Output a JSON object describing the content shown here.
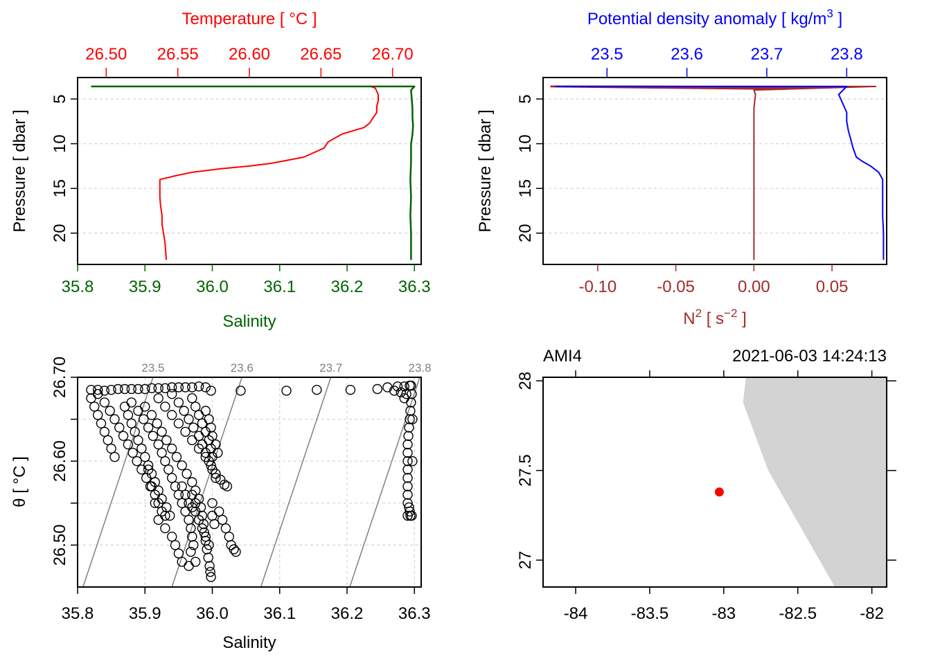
{
  "colors": {
    "temperature": "#ff0000",
    "salinity": "#006400",
    "density": "#0000ff",
    "n2": "#a52a2a",
    "grid": "#d3d3d3",
    "isopycnal": "#808080",
    "land": "#d3d3d3",
    "station": "#ff0000"
  },
  "chart_data": [
    {
      "type": "line",
      "panel": "profile-temperature-salinity",
      "title": "",
      "top_axis": {
        "label": "Temperature [ °C ]",
        "range": [
          26.48,
          26.72
        ],
        "ticks": [
          "26.50",
          "26.55",
          "26.60",
          "26.65",
          "26.70"
        ],
        "tick_values": [
          26.5,
          26.55,
          26.6,
          26.65,
          26.7
        ]
      },
      "bottom_axis": {
        "label": "Salinity",
        "range": [
          35.8,
          36.31
        ],
        "ticks": [
          "35.8",
          "35.9",
          "36.0",
          "36.1",
          "36.2",
          "36.3"
        ],
        "tick_values": [
          35.8,
          35.9,
          36.0,
          36.1,
          36.2,
          36.3
        ]
      },
      "left_axis": {
        "label": "Pressure [ dbar ]",
        "range": [
          2.6,
          23.5
        ],
        "reversed": true,
        "ticks": [
          "5",
          "10",
          "15",
          "20"
        ],
        "tick_values": [
          5,
          10,
          15,
          20
        ]
      },
      "grid": true,
      "series": [
        {
          "name": "Temperature",
          "axis": "top",
          "x": [
            26.68,
            26.685,
            26.688,
            26.69,
            26.69,
            26.689,
            26.689,
            26.686,
            26.684,
            26.68,
            26.665,
            26.655,
            26.652,
            26.645,
            26.638,
            26.625,
            26.615,
            26.6,
            26.58,
            26.56,
            26.548,
            26.5375,
            26.5375,
            26.5375,
            26.538,
            26.539,
            26.539,
            26.54,
            26.541,
            26.542
          ],
          "y": [
            3.6,
            3.6,
            3.8,
            4.5,
            5.2,
            5.8,
            6.5,
            7.2,
            7.7,
            8.2,
            8.9,
            9.8,
            10.5,
            11.0,
            11.5,
            11.9,
            12.2,
            12.5,
            12.8,
            13.2,
            13.6,
            14.0,
            15.0,
            16.0,
            17.0,
            18.0,
            19.0,
            20.0,
            21.0,
            23.0
          ]
        },
        {
          "name": "Salinity",
          "axis": "bottom",
          "x": [
            35.82,
            36.3,
            36.295,
            36.296,
            36.297,
            36.297,
            36.298,
            36.297,
            36.295,
            36.295,
            36.294,
            36.295,
            36.294,
            36.295,
            36.295
          ],
          "y": [
            3.6,
            3.6,
            4.0,
            5.0,
            6.0,
            7.0,
            8.0,
            9.0,
            10.0,
            12.0,
            14.0,
            16.0,
            18.0,
            20.0,
            23.0
          ]
        }
      ]
    },
    {
      "type": "line",
      "panel": "profile-density-n2",
      "title": "",
      "top_axis": {
        "label": "Potential density anomaly [ kg/m³ ]",
        "label_parts": [
          "Potential density anomaly [ kg/m",
          "3",
          " ]"
        ],
        "range": [
          23.42,
          23.85
        ],
        "ticks": [
          "23.5",
          "23.6",
          "23.7",
          "23.8"
        ],
        "tick_values": [
          23.5,
          23.6,
          23.7,
          23.8
        ]
      },
      "bottom_axis": {
        "label": "N² [ s⁻² ]",
        "label_parts": [
          "N",
          "2",
          " [ s",
          "−2",
          " ]"
        ],
        "range": [
          -0.135,
          0.085
        ],
        "ticks": [
          "-0.10",
          "-0.05",
          "0.00",
          "0.05"
        ],
        "tick_values": [
          -0.1,
          -0.05,
          0.0,
          0.05
        ]
      },
      "left_axis": {
        "label": "Pressure [ dbar ]",
        "range": [
          2.6,
          23.5
        ],
        "reversed": true,
        "ticks": [
          "5",
          "10",
          "15",
          "20"
        ],
        "tick_values": [
          5,
          10,
          15,
          20
        ]
      },
      "grid": true,
      "series": [
        {
          "name": "Potential density anomaly",
          "axis": "top",
          "x": [
            23.435,
            23.8,
            23.79,
            23.795,
            23.8,
            23.8,
            23.802,
            23.805,
            23.808,
            23.81,
            23.812,
            23.82,
            23.83,
            23.84,
            23.845,
            23.845,
            23.845,
            23.846,
            23.846,
            23.846
          ],
          "y": [
            3.6,
            3.6,
            4.5,
            5.5,
            6.5,
            7.5,
            8.5,
            9.5,
            10.5,
            11.0,
            11.5,
            12.0,
            12.5,
            13.2,
            14.0,
            16.0,
            18.0,
            20.0,
            22.0,
            23.0
          ]
        },
        {
          "name": "N2",
          "axis": "bottom",
          "x": [
            -0.13,
            0.078,
            0.0,
            0.001,
            0.0,
            0.0,
            0.0,
            0.0
          ],
          "y": [
            3.6,
            3.6,
            4.0,
            4.5,
            6.0,
            10.0,
            16.0,
            23.0
          ]
        }
      ]
    },
    {
      "type": "scatter",
      "panel": "ts-diagram",
      "title": "",
      "xlabel": "Salinity",
      "ylabel": "θ [ °C ]",
      "xlim": [
        35.8,
        36.31
      ],
      "ylim": [
        26.45,
        26.7
      ],
      "x_ticks": [
        "35.8",
        "35.9",
        "36.0",
        "36.1",
        "36.2",
        "36.3"
      ],
      "x_tick_values": [
        35.8,
        35.9,
        36.0,
        36.1,
        36.2,
        36.3
      ],
      "y_ticks": [
        "26.50",
        "26.60",
        "26.70"
      ],
      "y_tick_values": [
        26.5,
        26.6,
        26.7
      ],
      "grid": true,
      "isopycnals": [
        {
          "label": "23.5",
          "x": [
            35.808,
            35.912
          ],
          "y": [
            26.45,
            26.7
          ]
        },
        {
          "label": "23.6",
          "x": [
            35.94,
            36.044
          ],
          "y": [
            26.45,
            26.7
          ]
        },
        {
          "label": "23.7",
          "x": [
            36.072,
            36.176
          ],
          "y": [
            26.45,
            26.7
          ]
        },
        {
          "label": "23.8",
          "x": [
            36.204,
            36.308
          ],
          "y": [
            26.45,
            26.7
          ]
        }
      ],
      "points": [
        [
          35.82,
          26.685
        ],
        [
          35.83,
          26.685
        ],
        [
          35.84,
          26.684
        ],
        [
          35.85,
          26.685
        ],
        [
          35.86,
          26.686
        ],
        [
          35.87,
          26.686
        ],
        [
          35.88,
          26.686
        ],
        [
          35.89,
          26.686
        ],
        [
          35.9,
          26.686
        ],
        [
          35.91,
          26.687
        ],
        [
          35.92,
          26.687
        ],
        [
          35.93,
          26.687
        ],
        [
          35.94,
          26.688
        ],
        [
          35.95,
          26.688
        ],
        [
          35.96,
          26.688
        ],
        [
          35.97,
          26.688
        ],
        [
          35.98,
          26.689
        ],
        [
          35.99,
          26.688
        ],
        [
          35.998,
          26.684
        ],
        [
          36.042,
          26.684
        ],
        [
          36.11,
          26.684
        ],
        [
          36.155,
          26.685
        ],
        [
          36.205,
          26.685
        ],
        [
          36.245,
          26.686
        ],
        [
          36.26,
          26.688
        ],
        [
          36.275,
          26.689
        ],
        [
          36.285,
          26.689
        ],
        [
          36.293,
          26.69
        ],
        [
          35.82,
          26.675
        ],
        [
          35.825,
          26.665
        ],
        [
          35.83,
          26.655
        ],
        [
          35.835,
          26.645
        ],
        [
          35.84,
          26.635
        ],
        [
          35.845,
          26.625
        ],
        [
          35.85,
          26.615
        ],
        [
          35.855,
          26.605
        ],
        [
          35.83,
          26.68
        ],
        [
          35.84,
          26.67
        ],
        [
          35.848,
          26.66
        ],
        [
          35.855,
          26.65
        ],
        [
          35.862,
          26.64
        ],
        [
          35.868,
          26.63
        ],
        [
          35.875,
          26.62
        ],
        [
          35.882,
          26.61
        ],
        [
          35.888,
          26.6
        ],
        [
          35.895,
          26.59
        ],
        [
          35.902,
          26.58
        ],
        [
          35.908,
          26.57
        ],
        [
          35.915,
          26.56
        ],
        [
          35.92,
          26.55
        ],
        [
          35.925,
          26.54
        ],
        [
          35.93,
          26.535
        ],
        [
          35.87,
          26.665
        ],
        [
          35.875,
          26.655
        ],
        [
          35.88,
          26.645
        ],
        [
          35.885,
          26.635
        ],
        [
          35.89,
          26.625
        ],
        [
          35.895,
          26.615
        ],
        [
          35.9,
          26.605
        ],
        [
          35.905,
          26.595
        ],
        [
          35.91,
          26.585
        ],
        [
          35.915,
          26.575
        ],
        [
          35.92,
          26.565
        ],
        [
          35.925,
          26.555
        ],
        [
          35.932,
          26.545
        ],
        [
          35.937,
          26.535
        ],
        [
          35.88,
          26.67
        ],
        [
          35.89,
          26.66
        ],
        [
          35.898,
          26.65
        ],
        [
          35.905,
          26.64
        ],
        [
          35.912,
          26.63
        ],
        [
          35.92,
          26.62
        ],
        [
          35.925,
          26.61
        ],
        [
          35.93,
          26.6
        ],
        [
          35.935,
          26.59
        ],
        [
          35.94,
          26.58
        ],
        [
          35.945,
          26.57
        ],
        [
          35.95,
          26.56
        ],
        [
          35.955,
          26.55
        ],
        [
          35.96,
          26.54
        ],
        [
          35.965,
          26.53
        ],
        [
          35.968,
          26.52
        ],
        [
          35.97,
          26.51
        ],
        [
          35.972,
          26.5
        ],
        [
          35.968,
          26.492
        ],
        [
          35.9,
          26.665
        ],
        [
          35.91,
          26.655
        ],
        [
          35.918,
          26.645
        ],
        [
          35.925,
          26.635
        ],
        [
          35.932,
          26.625
        ],
        [
          35.94,
          26.615
        ],
        [
          35.947,
          26.605
        ],
        [
          35.955,
          26.595
        ],
        [
          35.962,
          26.585
        ],
        [
          35.97,
          26.575
        ],
        [
          35.975,
          26.565
        ],
        [
          35.98,
          26.555
        ],
        [
          35.983,
          26.545
        ],
        [
          35.985,
          26.535
        ],
        [
          35.987,
          26.525
        ],
        [
          35.988,
          26.515
        ],
        [
          35.99,
          26.505
        ],
        [
          35.992,
          26.495
        ],
        [
          35.994,
          26.485
        ],
        [
          35.996,
          26.475
        ],
        [
          35.997,
          26.468
        ],
        [
          35.998,
          26.462
        ],
        [
          35.92,
          26.675
        ],
        [
          35.93,
          26.665
        ],
        [
          35.94,
          26.655
        ],
        [
          35.95,
          26.645
        ],
        [
          35.96,
          26.635
        ],
        [
          35.97,
          26.625
        ],
        [
          35.98,
          26.615
        ],
        [
          35.99,
          26.605
        ],
        [
          35.998,
          26.595
        ],
        [
          36.005,
          26.585
        ],
        [
          36.012,
          26.578
        ],
        [
          36.018,
          26.572
        ],
        [
          36.022,
          26.57
        ],
        [
          35.94,
          26.68
        ],
        [
          35.95,
          26.67
        ],
        [
          35.958,
          26.66
        ],
        [
          35.965,
          26.65
        ],
        [
          35.972,
          26.64
        ],
        [
          35.98,
          26.63
        ],
        [
          35.985,
          26.62
        ],
        [
          35.99,
          26.61
        ],
        [
          35.995,
          26.6
        ],
        [
          36.0,
          26.59
        ],
        [
          36.005,
          26.58
        ],
        [
          35.97,
          26.675
        ],
        [
          35.975,
          26.665
        ],
        [
          35.98,
          26.655
        ],
        [
          35.985,
          26.645
        ],
        [
          35.99,
          26.635
        ],
        [
          35.995,
          26.625
        ],
        [
          35.998,
          26.615
        ],
        [
          36.0,
          26.605
        ],
        [
          35.99,
          26.66
        ],
        [
          35.995,
          26.65
        ],
        [
          35.998,
          26.64
        ],
        [
          36.0,
          26.63
        ],
        [
          36.005,
          26.62
        ],
        [
          36.008,
          26.61
        ],
        [
          35.905,
          26.59
        ],
        [
          35.91,
          26.57
        ],
        [
          35.915,
          26.55
        ],
        [
          35.92,
          26.53
        ],
        [
          35.93,
          26.52
        ],
        [
          35.94,
          26.51
        ],
        [
          35.945,
          26.5
        ],
        [
          35.95,
          26.49
        ],
        [
          35.955,
          26.48
        ],
        [
          35.965,
          26.475
        ],
        [
          35.975,
          26.48
        ],
        [
          35.955,
          26.57
        ],
        [
          35.96,
          26.56
        ],
        [
          35.965,
          26.55
        ],
        [
          35.97,
          26.545
        ],
        [
          35.975,
          26.54
        ],
        [
          36.0,
          26.55
        ],
        [
          36.01,
          26.54
        ],
        [
          36.015,
          26.53
        ],
        [
          36.02,
          26.52
        ],
        [
          36.025,
          26.51
        ],
        [
          36.028,
          26.5
        ],
        [
          36.032,
          26.495
        ],
        [
          36.035,
          26.492
        ],
        [
          35.97,
          26.56
        ],
        [
          35.975,
          26.55
        ],
        [
          35.98,
          26.53
        ],
        [
          35.985,
          26.52
        ],
        [
          35.99,
          26.51
        ],
        [
          35.995,
          26.5
        ],
        [
          36.0,
          26.535
        ],
        [
          36.003,
          26.525
        ],
        [
          36.295,
          26.69
        ],
        [
          36.296,
          26.68
        ],
        [
          36.295,
          26.67
        ],
        [
          36.294,
          26.66
        ],
        [
          36.293,
          26.65
        ],
        [
          36.292,
          26.64
        ],
        [
          36.291,
          26.63
        ],
        [
          36.29,
          26.62
        ],
        [
          36.29,
          26.61
        ],
        [
          36.29,
          26.6
        ],
        [
          36.29,
          26.59
        ],
        [
          36.29,
          26.58
        ],
        [
          36.29,
          26.57
        ],
        [
          36.29,
          26.56
        ],
        [
          36.29,
          26.55
        ],
        [
          36.292,
          26.545
        ],
        [
          36.293,
          26.54
        ],
        [
          36.294,
          26.535
        ],
        [
          36.29,
          26.535
        ],
        [
          36.296,
          26.535
        ],
        [
          36.288,
          26.68
        ],
        [
          36.285,
          26.675
        ],
        [
          36.28,
          26.682
        ],
        [
          36.27,
          26.684
        ],
        [
          36.297,
          26.6
        ],
        [
          36.297,
          26.65
        ]
      ]
    },
    {
      "type": "map",
      "panel": "station-map",
      "station_label": "AMI4",
      "datetime": "2021-06-03 14:24:13",
      "xlim": [
        -84.22,
        -81.9
      ],
      "ylim": [
        26.85,
        28.02
      ],
      "x_ticks": [
        "-84",
        "-83.5",
        "-83",
        "-82.5",
        "-82"
      ],
      "x_tick_values": [
        -84,
        -83.5,
        -83,
        -82.5,
        -82
      ],
      "y_ticks": [
        "27",
        "27.5",
        "28"
      ],
      "y_tick_values": [
        27,
        27.5,
        28
      ],
      "station": {
        "lon": -83.03,
        "lat": 27.38
      },
      "land": [
        [
          -82.85,
          28.02
        ],
        [
          -82.87,
          27.88
        ],
        [
          -82.7,
          27.5
        ],
        [
          -82.25,
          26.85
        ],
        [
          -81.9,
          26.85
        ],
        [
          -81.9,
          28.02
        ]
      ]
    }
  ]
}
